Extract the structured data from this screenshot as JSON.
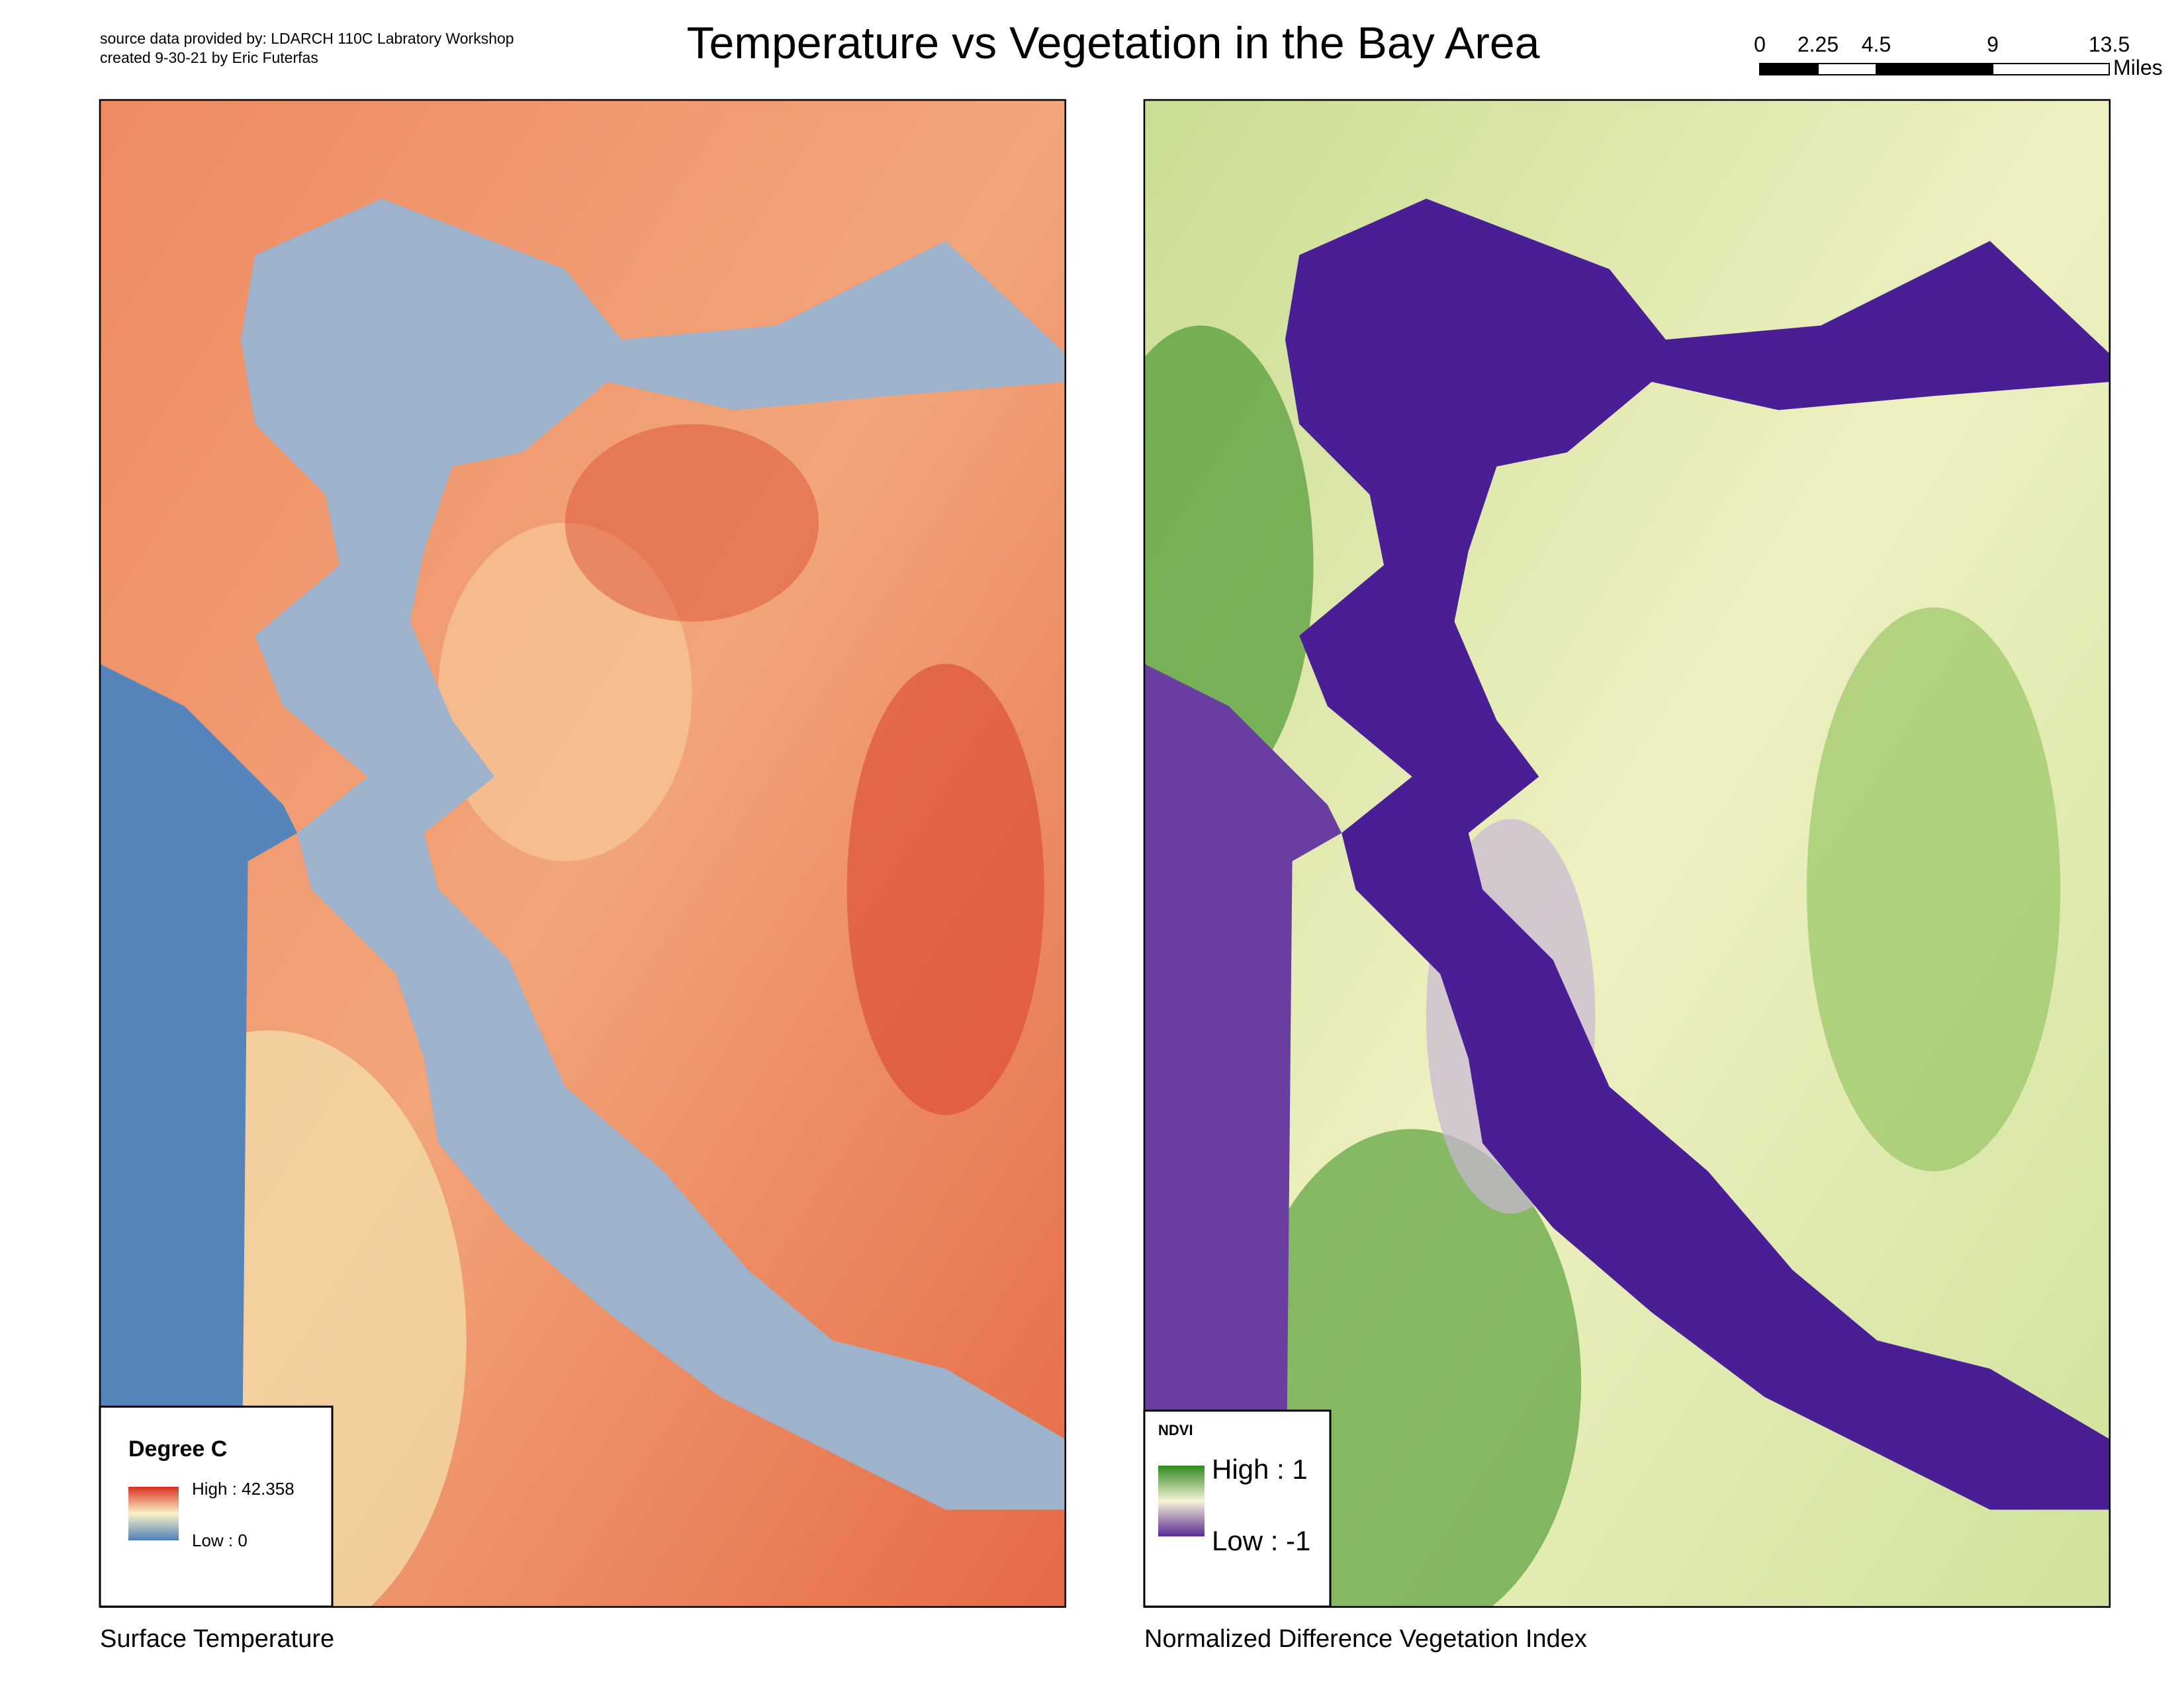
{
  "header": {
    "source": "source data provided by: LDARCH 110C Labratory Workshop",
    "credit": "created 9-30-21 by Eric Futerfas",
    "title": "Temperature vs Vegetation in the Bay Area"
  },
  "scale_bar": {
    "ticks": [
      0,
      2.25,
      4.5,
      9,
      13.5
    ],
    "unit": "Miles"
  },
  "maps": [
    {
      "caption": "Surface Temperature",
      "legend": {
        "title": "Degree C",
        "high_label": "High : 42.358",
        "low_label": "Low : 0"
      }
    },
    {
      "caption": "Normalized Difference Vegetation Index",
      "legend": {
        "title": "NDVI",
        "high_label": "High : 1",
        "low_label": "Low : -1"
      }
    }
  ]
}
